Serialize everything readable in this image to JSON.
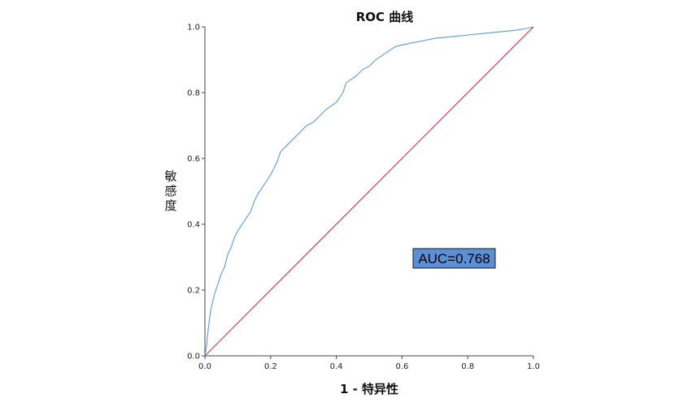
{
  "chart_data": {
    "type": "line",
    "title": "ROC 曲线",
    "xlabel": "1 - 特异性",
    "ylabel": "敏感度",
    "xlim": [
      0,
      1
    ],
    "ylim": [
      0,
      1
    ],
    "x_ticks": [
      "0.0",
      "0.2",
      "0.4",
      "0.6",
      "0.8",
      "1.0"
    ],
    "y_ticks": [
      "0.0",
      "0.2",
      "0.4",
      "0.6",
      "0.8",
      "1.0"
    ],
    "grid": false,
    "annotation": {
      "text": "AUC=0.768",
      "x": 0.64,
      "y": 0.3,
      "fill": "#5b8fd6"
    },
    "series": [
      {
        "color": "#5b9bd5",
        "points": [
          [
            0.0,
            0.0
          ],
          [
            0.005,
            0.03
          ],
          [
            0.01,
            0.08
          ],
          [
            0.015,
            0.12
          ],
          [
            0.02,
            0.15
          ],
          [
            0.03,
            0.19
          ],
          [
            0.04,
            0.22
          ],
          [
            0.05,
            0.25
          ],
          [
            0.06,
            0.27
          ],
          [
            0.07,
            0.31
          ],
          [
            0.08,
            0.33
          ],
          [
            0.09,
            0.36
          ],
          [
            0.1,
            0.38
          ],
          [
            0.12,
            0.41
          ],
          [
            0.14,
            0.44
          ],
          [
            0.15,
            0.47
          ],
          [
            0.16,
            0.49
          ],
          [
            0.18,
            0.52
          ],
          [
            0.2,
            0.55
          ],
          [
            0.22,
            0.59
          ],
          [
            0.23,
            0.62
          ],
          [
            0.25,
            0.64
          ],
          [
            0.27,
            0.66
          ],
          [
            0.29,
            0.68
          ],
          [
            0.31,
            0.7
          ],
          [
            0.33,
            0.71
          ],
          [
            0.35,
            0.73
          ],
          [
            0.37,
            0.75
          ],
          [
            0.4,
            0.77
          ],
          [
            0.42,
            0.8
          ],
          [
            0.43,
            0.83
          ],
          [
            0.46,
            0.85
          ],
          [
            0.48,
            0.87
          ],
          [
            0.5,
            0.88
          ],
          [
            0.52,
            0.9
          ],
          [
            0.55,
            0.92
          ],
          [
            0.58,
            0.94
          ],
          [
            0.6,
            0.945
          ],
          [
            0.65,
            0.955
          ],
          [
            0.7,
            0.965
          ],
          [
            0.75,
            0.97
          ],
          [
            0.8,
            0.975
          ],
          [
            0.85,
            0.98
          ],
          [
            0.9,
            0.985
          ],
          [
            0.95,
            0.99
          ],
          [
            0.98,
            0.995
          ],
          [
            1.0,
            1.0
          ]
        ]
      },
      {
        "color": "#d9294f",
        "points": [
          [
            0,
            0
          ],
          [
            1,
            1
          ]
        ]
      }
    ]
  }
}
